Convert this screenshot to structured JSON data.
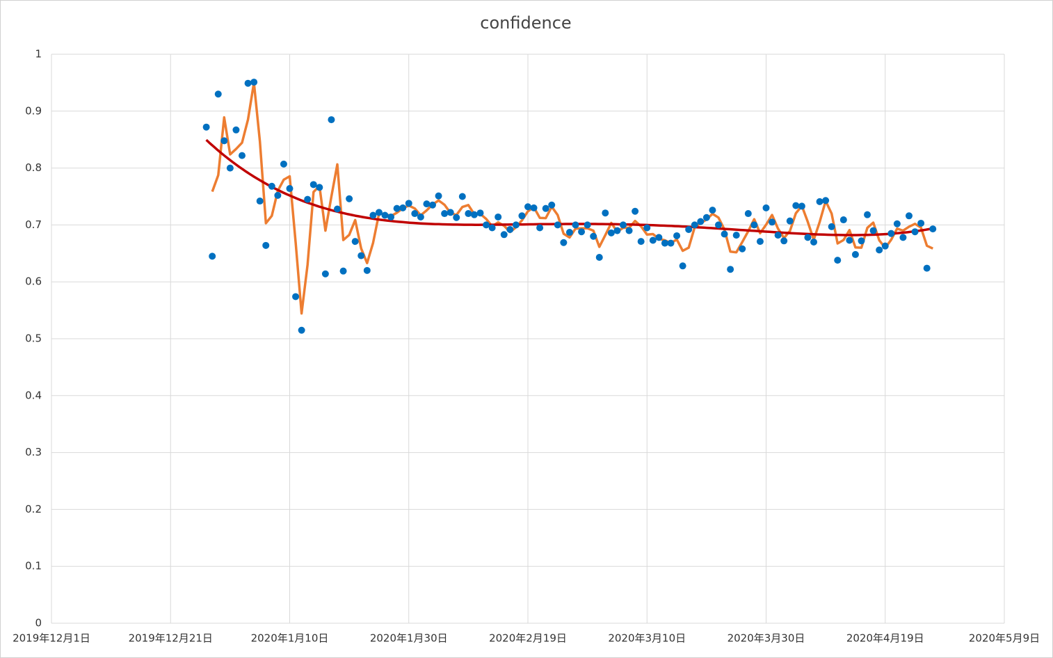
{
  "chart_data": {
    "type": "scatter",
    "title": "confidence",
    "x": [
      "2019-12-27",
      "2019-12-28",
      "2019-12-29",
      "2019-12-30",
      "2019-12-31",
      "2020-01-01",
      "2020-01-02",
      "2020-01-03",
      "2020-01-04",
      "2020-01-05",
      "2020-01-06",
      "2020-01-07",
      "2020-01-08",
      "2020-01-09",
      "2020-01-10",
      "2020-01-11",
      "2020-01-12",
      "2020-01-13",
      "2020-01-14",
      "2020-01-15",
      "2020-01-16",
      "2020-01-17",
      "2020-01-18",
      "2020-01-19",
      "2020-01-20",
      "2020-01-21",
      "2020-01-22",
      "2020-01-23",
      "2020-01-24",
      "2020-01-25",
      "2020-01-26",
      "2020-01-27",
      "2020-01-28",
      "2020-01-29",
      "2020-01-30",
      "2020-01-31",
      "2020-02-01",
      "2020-02-02",
      "2020-02-03",
      "2020-02-04",
      "2020-02-05",
      "2020-02-06",
      "2020-02-07",
      "2020-02-08",
      "2020-02-09",
      "2020-02-10",
      "2020-02-11",
      "2020-02-12",
      "2020-02-13",
      "2020-02-14",
      "2020-02-15",
      "2020-02-16",
      "2020-02-17",
      "2020-02-18",
      "2020-02-19",
      "2020-02-20",
      "2020-02-21",
      "2020-02-22",
      "2020-02-23",
      "2020-02-24",
      "2020-02-25",
      "2020-02-26",
      "2020-02-27",
      "2020-02-28",
      "2020-02-29",
      "2020-03-01",
      "2020-03-02",
      "2020-03-03",
      "2020-03-04",
      "2020-03-05",
      "2020-03-06",
      "2020-03-07",
      "2020-03-08",
      "2020-03-09",
      "2020-03-10",
      "2020-03-11",
      "2020-03-12",
      "2020-03-13",
      "2020-03-14",
      "2020-03-15",
      "2020-03-16",
      "2020-03-17",
      "2020-03-18",
      "2020-03-19",
      "2020-03-20",
      "2020-03-21",
      "2020-03-22",
      "2020-03-23",
      "2020-03-24",
      "2020-03-25",
      "2020-03-26",
      "2020-03-27",
      "2020-03-28",
      "2020-03-29",
      "2020-03-30",
      "2020-03-31",
      "2020-04-01",
      "2020-04-02",
      "2020-04-03",
      "2020-04-04",
      "2020-04-05",
      "2020-04-06",
      "2020-04-07",
      "2020-04-08",
      "2020-04-09",
      "2020-04-10",
      "2020-04-11",
      "2020-04-12",
      "2020-04-13",
      "2020-04-14",
      "2020-04-15",
      "2020-04-16",
      "2020-04-17",
      "2020-04-18",
      "2020-04-19",
      "2020-04-20",
      "2020-04-21",
      "2020-04-22",
      "2020-04-23",
      "2020-04-24",
      "2020-04-25",
      "2020-04-26",
      "2020-04-27"
    ],
    "series": [
      {
        "color": "#0070c0",
        "values": [
          0.872,
          0.645,
          0.93,
          0.848,
          0.8,
          0.867,
          0.822,
          0.949,
          0.951,
          0.742,
          0.664,
          0.768,
          0.752,
          0.807,
          0.764,
          0.574,
          0.515,
          0.745,
          0.771,
          0.766,
          0.614,
          0.885,
          0.728,
          0.619,
          0.746,
          0.671,
          0.646,
          0.62,
          0.717,
          0.722,
          0.717,
          0.714,
          0.729,
          0.73,
          0.738,
          0.72,
          0.714,
          0.737,
          0.735,
          0.751,
          0.72,
          0.722,
          0.713,
          0.75,
          0.72,
          0.718,
          0.721,
          0.7,
          0.695,
          0.714,
          0.683,
          0.692,
          0.7,
          0.716,
          0.732,
          0.73,
          0.695,
          0.729,
          0.735,
          0.7,
          0.669,
          0.687,
          0.7,
          0.688,
          0.7,
          0.68,
          0.643,
          0.721,
          0.686,
          0.69,
          0.7,
          0.69,
          0.724,
          0.671,
          0.695,
          0.673,
          0.678,
          0.668,
          0.668,
          0.681,
          0.628,
          0.692,
          0.7,
          0.706,
          0.713,
          0.726,
          0.7,
          0.684,
          0.622,
          0.682,
          0.658,
          0.72,
          0.7,
          0.671,
          0.73,
          0.705,
          0.682,
          0.672,
          0.707,
          0.734,
          0.733,
          0.678,
          0.67,
          0.741,
          0.743,
          0.697,
          0.638,
          0.709,
          0.673,
          0.648,
          0.672,
          0.718,
          0.69,
          0.656,
          0.663,
          0.685,
          0.702,
          0.678,
          0.716,
          0.688,
          0.703,
          0.624,
          0.693
        ]
      }
    ],
    "trendlines": [
      {
        "type": "moving_average",
        "period": 2,
        "color": "#ed7d31"
      },
      {
        "type": "polynomial",
        "order": 4,
        "color": "#c00000"
      }
    ],
    "xlim": [
      "2019-12-01",
      "2020-05-09"
    ],
    "xticks": [
      {
        "value": "2019-12-01",
        "label": "2019年12月1日"
      },
      {
        "value": "2019-12-21",
        "label": "2019年12月21日"
      },
      {
        "value": "2020-01-10",
        "label": "2020年1月10日"
      },
      {
        "value": "2020-01-30",
        "label": "2020年1月30日"
      },
      {
        "value": "2020-02-19",
        "label": "2020年2月19日"
      },
      {
        "value": "2020-03-10",
        "label": "2020年3月10日"
      },
      {
        "value": "2020-03-30",
        "label": "2020年3月30日"
      },
      {
        "value": "2020-04-19",
        "label": "2020年4月19日"
      },
      {
        "value": "2020-05-09",
        "label": "2020年5月9日"
      }
    ],
    "ylim": [
      0,
      1
    ],
    "yticks": [
      0,
      0.1,
      0.2,
      0.3,
      0.4,
      0.5,
      0.6,
      0.7,
      0.8,
      0.9,
      1
    ],
    "grid": true
  }
}
